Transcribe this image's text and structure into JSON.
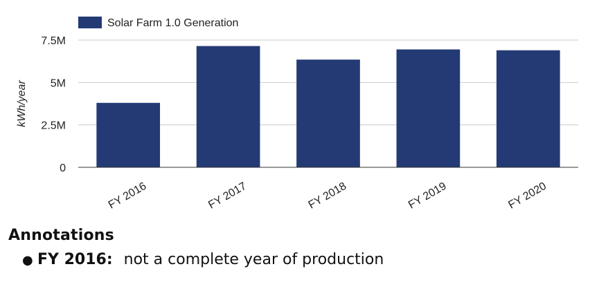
{
  "chart_data": {
    "type": "bar",
    "categories": [
      "FY 2016",
      "FY 2017",
      "FY 2018",
      "FY 2019",
      "FY 2020"
    ],
    "series": [
      {
        "name": "Solar Farm 1.0 Generation",
        "values": [
          3800000,
          7150000,
          6350000,
          6950000,
          6900000
        ],
        "color": "#233a75"
      }
    ],
    "ylabel": "kWh/year",
    "ylim": [
      0,
      7500000
    ],
    "yticks": [
      0,
      2500000,
      5000000,
      7500000
    ],
    "ytick_labels": [
      "0",
      "2.5M",
      "5M",
      "7.5M"
    ],
    "grid": true,
    "legend": "top-left"
  },
  "annotations": {
    "title": "Annotations",
    "items": [
      {
        "label": "FY 2016:",
        "text": "not a complete year of production"
      }
    ]
  }
}
